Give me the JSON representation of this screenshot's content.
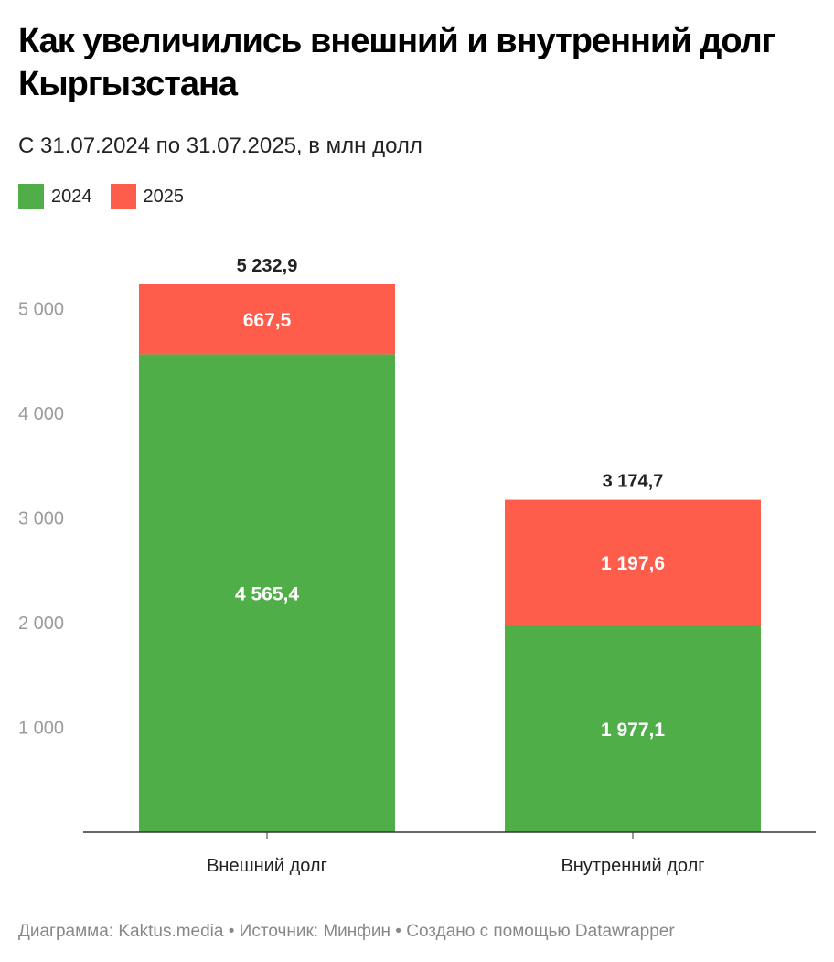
{
  "title": "Как увеличились внешний и внутренний долг Кыргызстана",
  "subtitle": "С 31.07.2024 по 31.07.2025, в млн долл",
  "footer": "Диаграмма: Kaktus.media • Источник: Минфин • Создано с помощью Datawrapper",
  "colors": {
    "2024": "#4fae48",
    "2025": "#ff5d4b"
  },
  "chart_data": {
    "type": "bar",
    "stacked": true,
    "categories": [
      "Внешний долг",
      "Внутренний долг"
    ],
    "series": [
      {
        "name": "2024",
        "values": [
          4565.4,
          1977.1
        ],
        "labels": [
          "4 565,4",
          "1 977,1"
        ]
      },
      {
        "name": "2025",
        "values": [
          667.5,
          1197.6
        ],
        "labels": [
          "667,5",
          "1 197,6"
        ]
      }
    ],
    "totals": [
      5232.9,
      3174.7
    ],
    "total_labels": [
      "5 232,9",
      "3 174,7"
    ],
    "ylim": [
      0,
      5232.9
    ],
    "yticks": [
      1000,
      2000,
      3000,
      4000,
      5000
    ],
    "ytick_labels": [
      "1 000",
      "2 000",
      "3 000",
      "4 000",
      "5 000"
    ],
    "legend_position": "top-left",
    "grid": false
  }
}
